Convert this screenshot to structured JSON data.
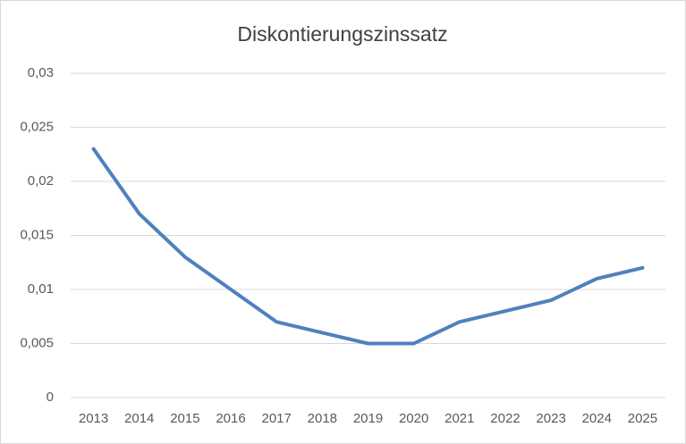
{
  "chart_data": {
    "type": "line",
    "title": "Diskontierungszinssatz",
    "categories": [
      "2013",
      "2014",
      "2015",
      "2016",
      "2017",
      "2018",
      "2019",
      "2020",
      "2021",
      "2022",
      "2023",
      "2024",
      "2025"
    ],
    "values": [
      0.023,
      0.017,
      0.013,
      0.01,
      0.007,
      0.006,
      0.005,
      0.005,
      0.007,
      0.008,
      0.009,
      0.011,
      0.012
    ],
    "color": "#4f81bd",
    "ylim": [
      0,
      0.03
    ],
    "yticks": [
      0,
      {
        "value": 0.005,
        "label": "0,005"
      },
      {
        "value": 0.01,
        "label": "0,01"
      },
      {
        "value": 0.015,
        "label": "0,015"
      },
      {
        "value": 0.02,
        "label": "0,02"
      },
      {
        "value": 0.025,
        "label": "0,025"
      },
      {
        "value": 0.03,
        "label": "0,03"
      }
    ],
    "grid": true
  }
}
